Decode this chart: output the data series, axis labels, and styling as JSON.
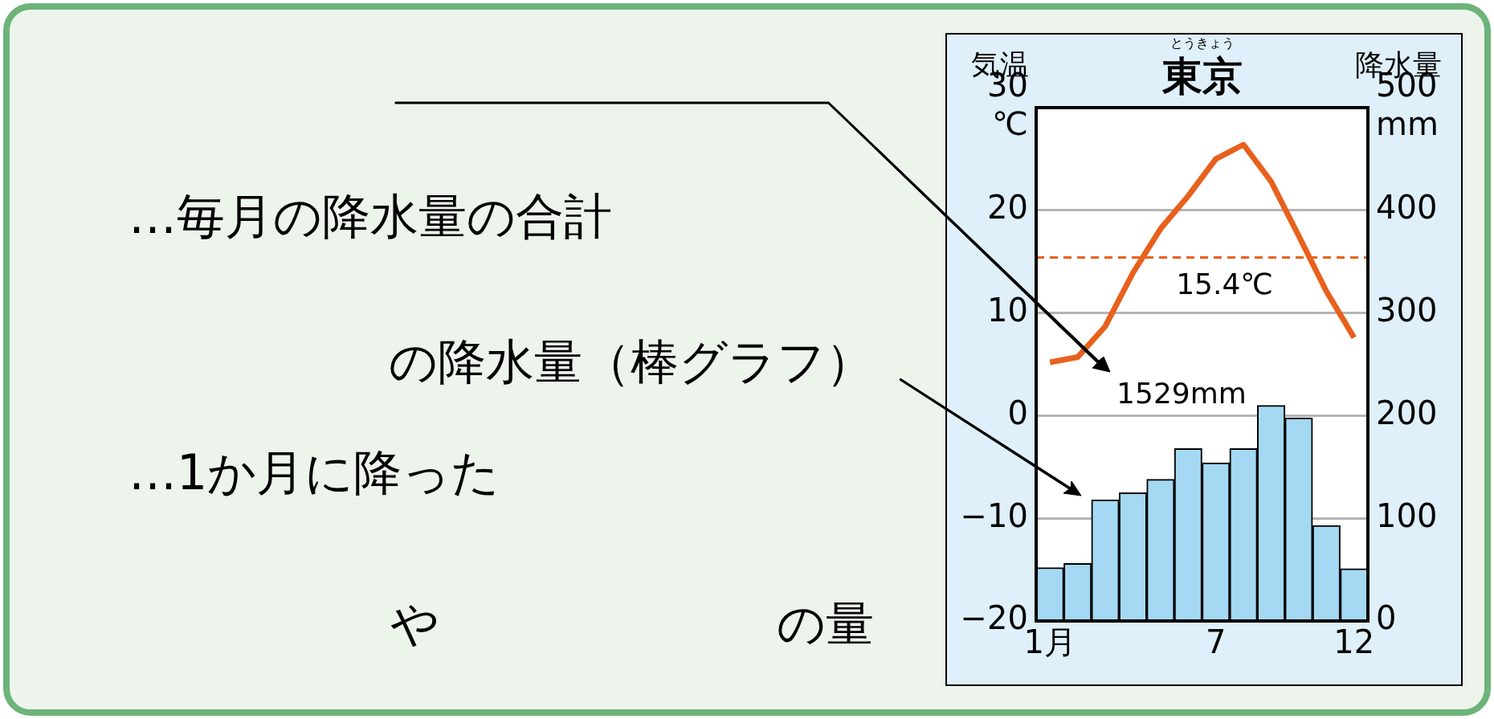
{
  "chart_data": {
    "type": "bar",
    "title": "東京",
    "subtitle": "とうきょう",
    "ylabel": "気温",
    "y2label": "降水量",
    "categories": [
      "1月",
      null,
      null,
      null,
      null,
      null,
      "7",
      null,
      null,
      null,
      null,
      "12"
    ],
    "series": [
      {
        "type": "bar",
        "axis": "y2",
        "color": "#a5d8f3",
        "values": [
          52,
          56,
          118,
          125,
          138,
          168,
          154,
          168,
          210,
          198,
          93,
          51
        ]
      },
      {
        "type": "line",
        "axis": "y",
        "color": "#e8601c",
        "values": [
          5.2,
          5.7,
          8.7,
          13.9,
          18.2,
          21.4,
          25.0,
          26.4,
          22.8,
          17.5,
          12.1,
          7.6
        ]
      }
    ],
    "ylim": [
      -20,
      30
    ],
    "yticks": [
      {
        "value": -20,
        "label": "−20"
      },
      {
        "value": -10,
        "label": "−10"
      },
      0,
      10,
      20,
      {
        "value": 30,
        "label": "30℃"
      }
    ],
    "y2lim": [
      0,
      500
    ],
    "y2ticks": [
      0,
      100,
      200,
      300,
      400,
      {
        "value": 500,
        "label": "500mm"
      }
    ],
    "grid": "y",
    "marker": "none",
    "line_style": "solid",
    "ref_lines": [
      {
        "axis": "y",
        "value": 15.4,
        "label": "15.4℃",
        "color": "#e8601c",
        "line_style": "dashed"
      }
    ],
    "annotations": [
      "1529mm",
      "…毎月の降水量の合計",
      "の降水量（棒グラフ）",
      "…1か月に降った",
      "や",
      "の量"
    ]
  }
}
